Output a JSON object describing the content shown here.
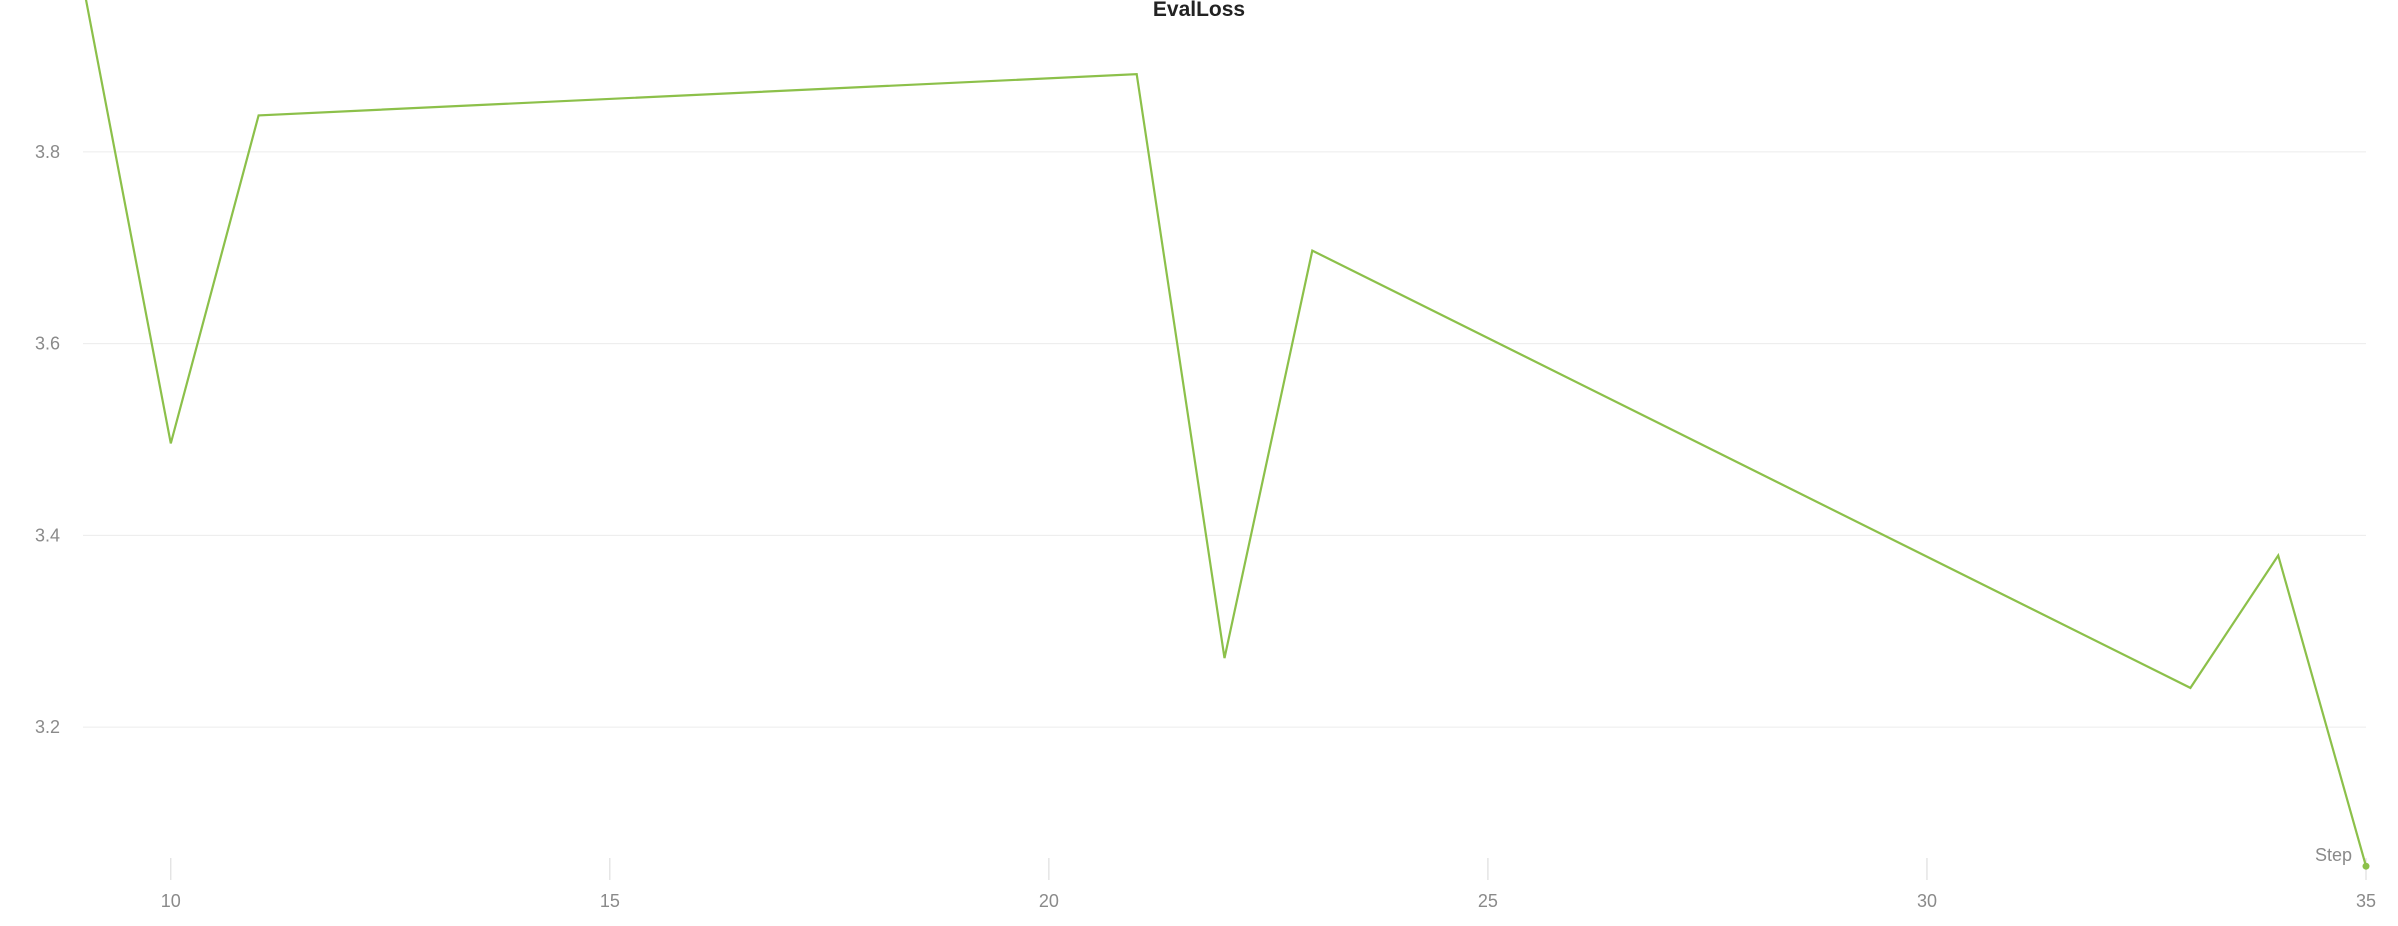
{
  "chart_data": {
    "type": "line",
    "title": "EvalLoss",
    "xlabel": "Step",
    "ylabel": "",
    "x_ticks": [
      10,
      15,
      20,
      25,
      30,
      35
    ],
    "y_ticks": [
      3.2,
      3.4,
      3.6,
      3.8
    ],
    "xlim": [
      9,
      35
    ],
    "ylim": [
      3.05,
      3.9
    ],
    "grid": "horizontal",
    "series": [
      {
        "color": "#8cc04a",
        "x": [
          9,
          10,
          11,
          21,
          22,
          23,
          33,
          34,
          35
        ],
        "y": [
          3.975,
          3.496,
          3.838,
          3.881,
          3.272,
          3.697,
          3.241,
          3.379,
          3.055
        ]
      }
    ]
  }
}
